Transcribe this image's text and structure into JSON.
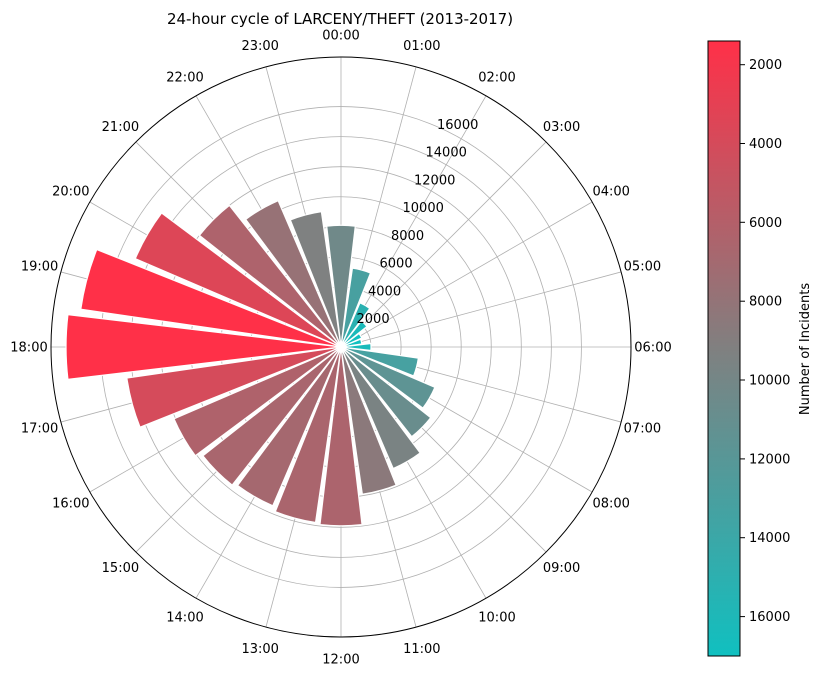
{
  "chart_data": {
    "type": "bar",
    "subtype": "polar",
    "title": "24-hour cycle of LARCENY/THEFT (2013-2017)",
    "categories": [
      "00:00",
      "01:00",
      "02:00",
      "03:00",
      "04:00",
      "05:00",
      "06:00",
      "07:00",
      "08:00",
      "09:00",
      "10:00",
      "11:00",
      "12:00",
      "13:00",
      "14:00",
      "15:00",
      "16:00",
      "17:00",
      "18:00",
      "19:00",
      "20:00",
      "21:00",
      "22:00",
      "23:00"
    ],
    "values": [
      8100,
      5300,
      3200,
      2200,
      1500,
      1400,
      2000,
      5200,
      6800,
      7600,
      8800,
      9900,
      11900,
      11800,
      11500,
      11700,
      12100,
      14400,
      18300,
      17500,
      14900,
      12000,
      10600,
      9100
    ],
    "radial_ticks": [
      "2000",
      "4000",
      "6000",
      "8000",
      "10000",
      "12000",
      "14000",
      "16000"
    ],
    "radial_tick_values": [
      2000,
      4000,
      6000,
      8000,
      10000,
      12000,
      14000,
      16000
    ],
    "rmax": 19300,
    "colorbar": {
      "label": "Number of Incidents",
      "min": 1400,
      "max": 17000,
      "ticks": [
        "2000",
        "4000",
        "6000",
        "8000",
        "10000",
        "12000",
        "14000",
        "16000"
      ],
      "tick_values": [
        2000,
        4000,
        6000,
        8000,
        10000,
        12000,
        14000,
        16000
      ],
      "low_color": "#10c0c0",
      "mid_color": "#808080",
      "high_color": "#ff3048"
    },
    "grid": true
  }
}
